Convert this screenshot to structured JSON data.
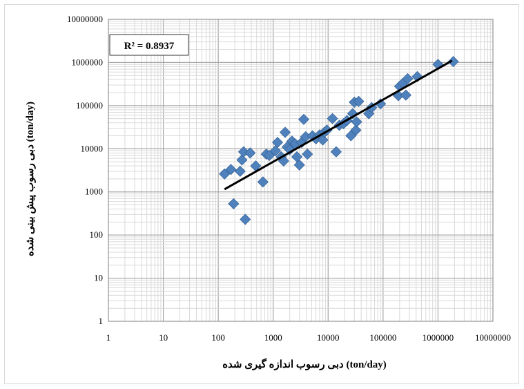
{
  "chart_data": {
    "type": "scatter",
    "title": "",
    "xlabel": "دبی رسوب اندازه گیری شده (ton/day)",
    "ylabel": "دبی رسوب پیش بینی شده (ton/day)",
    "x_scale": "log",
    "y_scale": "log",
    "xlim": [
      1,
      10000000
    ],
    "ylim": [
      1,
      10000000
    ],
    "x_ticks": [
      "1",
      "10",
      "100",
      "1000",
      "10000",
      "100000",
      "1000000",
      "10000000"
    ],
    "y_ticks": [
      "1",
      "10",
      "100",
      "1000",
      "10000",
      "100000",
      "1000000",
      "10000000"
    ],
    "grid": true,
    "marker_color": "#4F81BD",
    "trendline_color": "#000000",
    "annotation": "R² = 0.8937",
    "trendline": {
      "x": [
        130,
        1800000
      ],
      "y": [
        1150,
        1100000
      ]
    },
    "points": [
      {
        "x": 130,
        "y": 2600
      },
      {
        "x": 170,
        "y": 3300
      },
      {
        "x": 190,
        "y": 530
      },
      {
        "x": 250,
        "y": 3000
      },
      {
        "x": 270,
        "y": 5500
      },
      {
        "x": 290,
        "y": 8500
      },
      {
        "x": 310,
        "y": 230
      },
      {
        "x": 380,
        "y": 8000
      },
      {
        "x": 480,
        "y": 4000
      },
      {
        "x": 650,
        "y": 1700
      },
      {
        "x": 750,
        "y": 7500
      },
      {
        "x": 850,
        "y": 7000
      },
      {
        "x": 1100,
        "y": 9000
      },
      {
        "x": 1200,
        "y": 14000
      },
      {
        "x": 1400,
        "y": 6500
      },
      {
        "x": 1550,
        "y": 5200
      },
      {
        "x": 1650,
        "y": 24000
      },
      {
        "x": 1800,
        "y": 11000
      },
      {
        "x": 2000,
        "y": 9500
      },
      {
        "x": 2200,
        "y": 15000
      },
      {
        "x": 2500,
        "y": 13000
      },
      {
        "x": 2700,
        "y": 6500
      },
      {
        "x": 3000,
        "y": 4200
      },
      {
        "x": 3300,
        "y": 14000
      },
      {
        "x": 3600,
        "y": 48000
      },
      {
        "x": 3900,
        "y": 19000
      },
      {
        "x": 4200,
        "y": 7500
      },
      {
        "x": 5200,
        "y": 20000
      },
      {
        "x": 6000,
        "y": 17000
      },
      {
        "x": 7000,
        "y": 21000
      },
      {
        "x": 8000,
        "y": 16000
      },
      {
        "x": 8500,
        "y": 24000
      },
      {
        "x": 9500,
        "y": 27000
      },
      {
        "x": 12000,
        "y": 50000
      },
      {
        "x": 14000,
        "y": 8500
      },
      {
        "x": 16000,
        "y": 35000
      },
      {
        "x": 19000,
        "y": 38000
      },
      {
        "x": 22000,
        "y": 45000
      },
      {
        "x": 26000,
        "y": 20000
      },
      {
        "x": 28000,
        "y": 65000
      },
      {
        "x": 30000,
        "y": 120000
      },
      {
        "x": 32000,
        "y": 27000
      },
      {
        "x": 33000,
        "y": 42000
      },
      {
        "x": 36000,
        "y": 125000
      },
      {
        "x": 55000,
        "y": 65000
      },
      {
        "x": 62000,
        "y": 90000
      },
      {
        "x": 90000,
        "y": 110000
      },
      {
        "x": 190000,
        "y": 170000
      },
      {
        "x": 200000,
        "y": 280000
      },
      {
        "x": 230000,
        "y": 330000
      },
      {
        "x": 260000,
        "y": 175000
      },
      {
        "x": 280000,
        "y": 420000
      },
      {
        "x": 420000,
        "y": 470000
      },
      {
        "x": 1000000,
        "y": 900000
      },
      {
        "x": 1900000,
        "y": 1050000
      }
    ]
  }
}
